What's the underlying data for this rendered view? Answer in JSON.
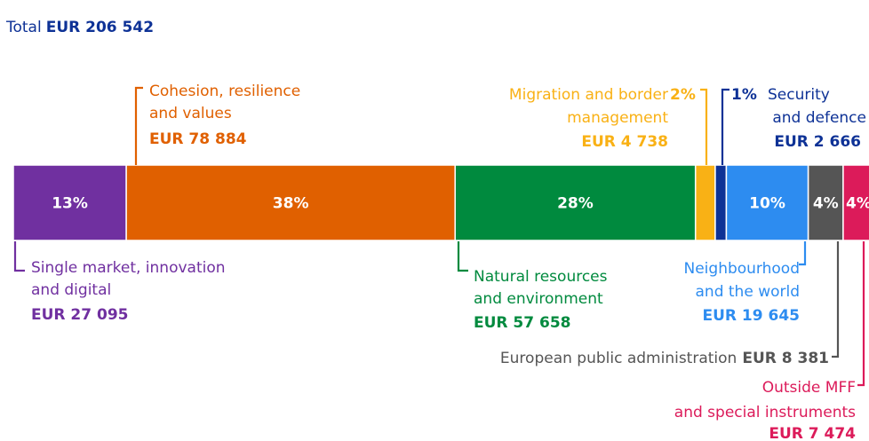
{
  "chart_data": {
    "type": "stacked-bar",
    "title": "Total",
    "total": 206542,
    "total_label": "EUR 206 542",
    "categories": [
      [
        "Single market, innovation",
        "and digital"
      ],
      [
        "Cohesion, resilience",
        "and values"
      ],
      [
        "Natural resources",
        "and environment"
      ],
      [
        "Migration and border",
        "management"
      ],
      [
        "Security",
        "and defence"
      ],
      [
        "Neighbourhood",
        "and the world"
      ],
      [
        "European public administration"
      ],
      [
        "Outside MFF",
        "and special instruments"
      ]
    ],
    "values": [
      27095,
      78884,
      57658,
      4738,
      2666,
      19645,
      8381,
      7474
    ],
    "value_labels": [
      "EUR 27 095",
      "EUR 78 884",
      "EUR 57 658",
      "EUR 4 738",
      "EUR 2 666",
      "EUR 19 645",
      "EUR 8 381",
      "EUR 7 474"
    ],
    "percents": [
      13,
      38,
      28,
      2,
      1,
      10,
      4,
      4
    ],
    "percent_labels": [
      "13%",
      "38%",
      "28%",
      "2%",
      "1%",
      "10%",
      "4%",
      "4%"
    ],
    "colors": [
      "#7030a0",
      "#e06000",
      "#008a3e",
      "#f9b115",
      "#0e3296",
      "#2d8cf0",
      "#555555",
      "#dc1b5a"
    ],
    "title_color": "#0e3296"
  }
}
